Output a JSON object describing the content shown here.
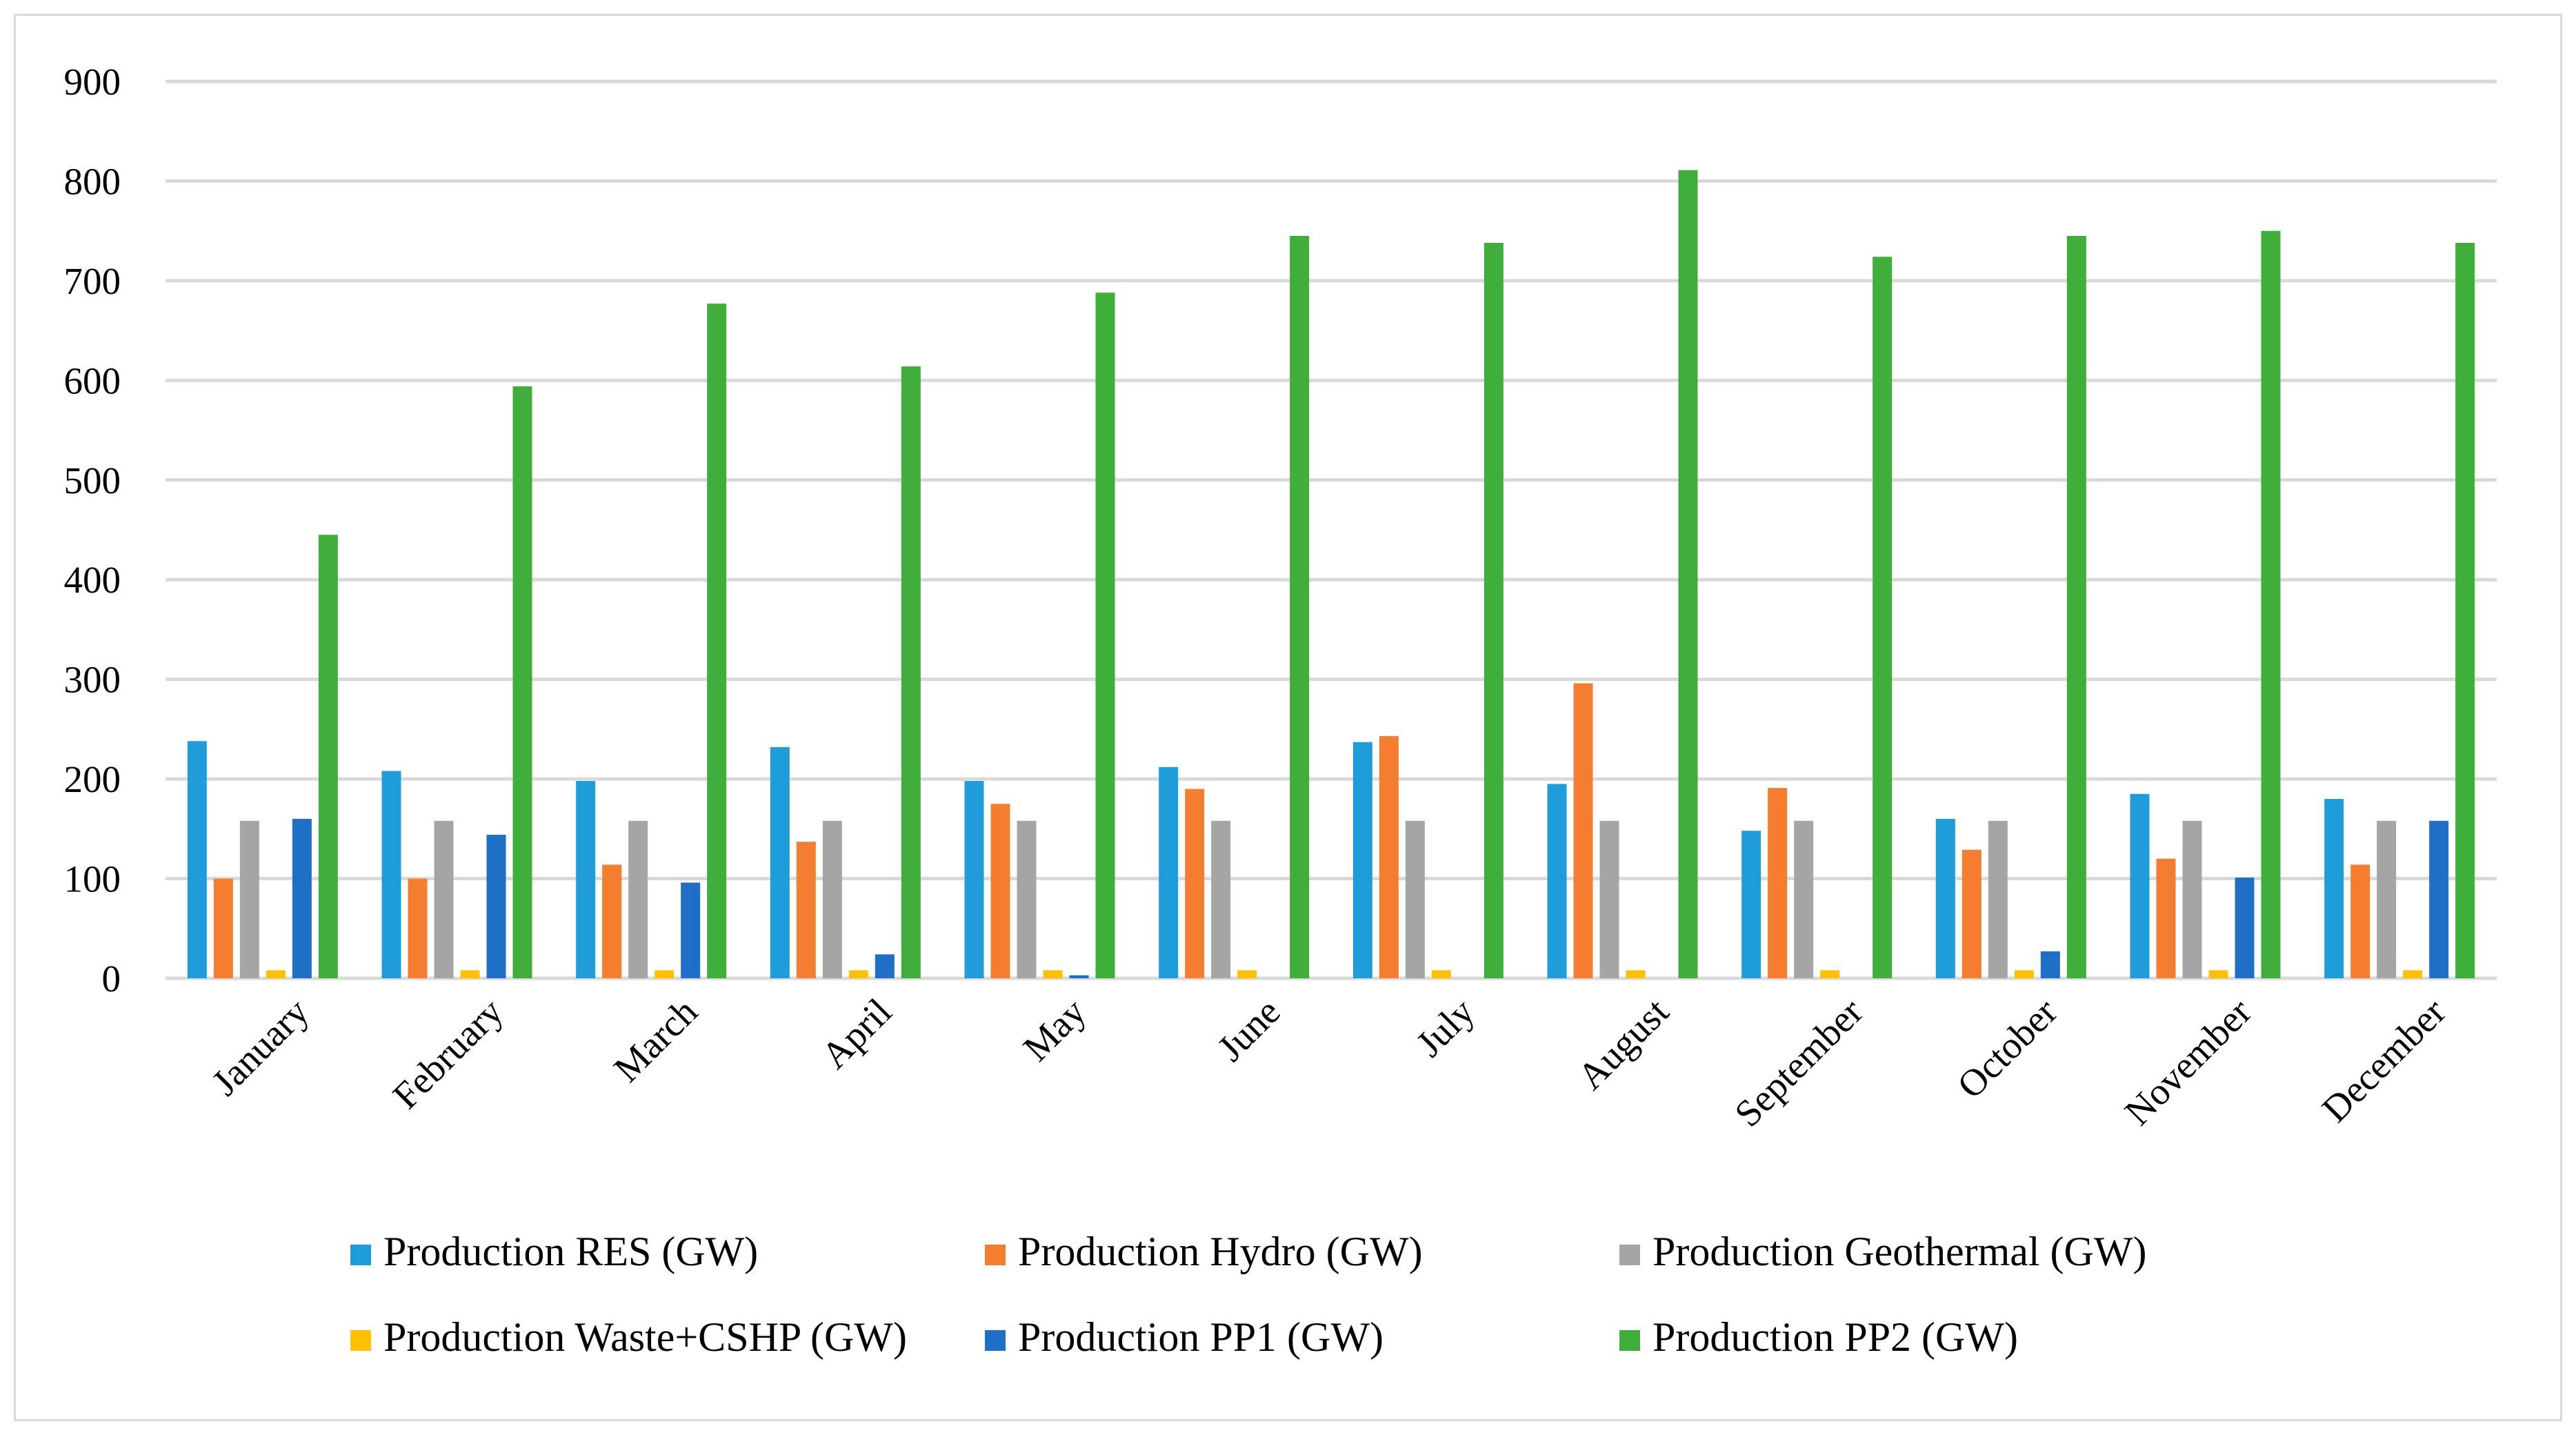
{
  "chart_data": {
    "type": "bar",
    "categories": [
      "January",
      "February",
      "March",
      "April",
      "May",
      "June",
      "July",
      "August",
      "September",
      "October",
      "November",
      "December"
    ],
    "series": [
      {
        "name": "Production RES (GW)",
        "color": "#1f9ddb",
        "values": [
          238,
          208,
          198,
          232,
          198,
          212,
          237,
          195,
          148,
          160,
          185,
          180
        ]
      },
      {
        "name": "Production Hydro (GW)",
        "color": "#f47d30",
        "values": [
          100,
          100,
          114,
          137,
          175,
          190,
          243,
          296,
          191,
          129,
          120,
          114
        ]
      },
      {
        "name": "Production Geothermal (GW)",
        "color": "#a5a5a5",
        "values": [
          158,
          158,
          158,
          158,
          158,
          158,
          158,
          158,
          158,
          158,
          158,
          158
        ]
      },
      {
        "name": "Production Waste+CSHP (GW)",
        "color": "#ffc000",
        "values": [
          8,
          8,
          8,
          8,
          8,
          8,
          8,
          8,
          8,
          8,
          8,
          8
        ]
      },
      {
        "name": "Production PP1 (GW)",
        "color": "#1f6fc6",
        "values": [
          160,
          144,
          96,
          24,
          3,
          0,
          0,
          0,
          0,
          27,
          101,
          158
        ]
      },
      {
        "name": "Production PP2 (GW)",
        "color": "#3fae3b",
        "values": [
          445,
          594,
          677,
          614,
          688,
          745,
          738,
          811,
          724,
          745,
          750,
          738
        ]
      }
    ],
    "title": "",
    "xlabel": "",
    "ylabel": "",
    "ylim": [
      0,
      900
    ],
    "yticks": [
      "0",
      "100",
      "200",
      "300",
      "400",
      "500",
      "600",
      "700",
      "800",
      "900"
    ],
    "grid": true,
    "legend_position": "bottom"
  }
}
